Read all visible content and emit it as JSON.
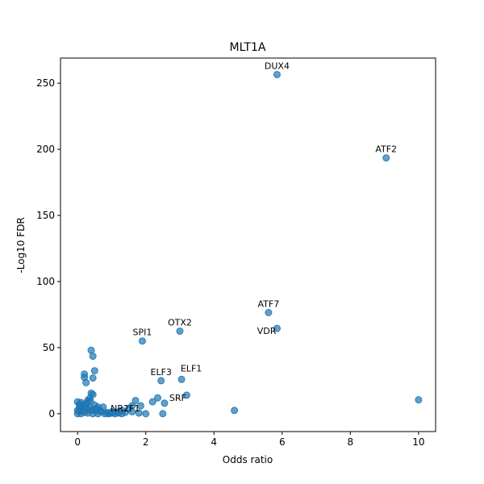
{
  "chart_data": {
    "type": "scatter",
    "title": "MLT1A",
    "xlabel": "Odds ratio",
    "ylabel": "-Log10 FDR",
    "xlim": [
      -0.5,
      10.5
    ],
    "ylim": [
      -13.5,
      269
    ],
    "xticks": [
      "0",
      "2",
      "4",
      "6",
      "8",
      "10"
    ],
    "yticks": [
      "0",
      "50",
      "100",
      "150",
      "200",
      "250"
    ],
    "grid": false,
    "point_color": "#1f77b4",
    "points": [
      {
        "x": 5.85,
        "y": 256.5
      },
      {
        "x": 9.05,
        "y": 193.5
      },
      {
        "x": 5.6,
        "y": 76.5
      },
      {
        "x": 5.85,
        "y": 64.5
      },
      {
        "x": 3.0,
        "y": 62.5
      },
      {
        "x": 1.9,
        "y": 55.0
      },
      {
        "x": 2.45,
        "y": 25.0
      },
      {
        "x": 3.05,
        "y": 26.0
      },
      {
        "x": 3.2,
        "y": 14.0
      },
      {
        "x": 2.55,
        "y": 8.0
      },
      {
        "x": 2.5,
        "y": 0.0
      },
      {
        "x": 1.85,
        "y": 6.0
      },
      {
        "x": 2.0,
        "y": 0.0
      },
      {
        "x": 4.6,
        "y": 2.5
      },
      {
        "x": 10.0,
        "y": 10.5
      },
      {
        "x": 2.35,
        "y": 12.0
      },
      {
        "x": 2.2,
        "y": 9.0
      },
      {
        "x": 1.7,
        "y": 10.0
      },
      {
        "x": 1.6,
        "y": 6.0
      },
      {
        "x": 1.5,
        "y": 4.0
      },
      {
        "x": 1.8,
        "y": 0.5
      },
      {
        "x": 1.4,
        "y": 1.0
      },
      {
        "x": 1.3,
        "y": 2.5
      },
      {
        "x": 0.4,
        "y": 48.0
      },
      {
        "x": 0.45,
        "y": 43.5
      },
      {
        "x": 0.5,
        "y": 32.5
      },
      {
        "x": 0.2,
        "y": 30.0
      },
      {
        "x": 0.2,
        "y": 27.5
      },
      {
        "x": 0.45,
        "y": 27.0
      },
      {
        "x": 0.25,
        "y": 23.5
      },
      {
        "x": 0.4,
        "y": 15.5
      },
      {
        "x": 0.45,
        "y": 14.5
      },
      {
        "x": 0.35,
        "y": 11.5
      },
      {
        "x": 0.3,
        "y": 10.0
      },
      {
        "x": 0.0,
        "y": 9.0
      },
      {
        "x": 0.1,
        "y": 8.5
      },
      {
        "x": 0.2,
        "y": 7.0
      },
      {
        "x": 0.5,
        "y": 6.5
      },
      {
        "x": 0.6,
        "y": 5.0
      },
      {
        "x": 0.75,
        "y": 5.0
      },
      {
        "x": 0.05,
        "y": 4.0
      },
      {
        "x": 0.15,
        "y": 3.5
      },
      {
        "x": 0.3,
        "y": 3.0
      },
      {
        "x": 0.4,
        "y": 2.5
      },
      {
        "x": 0.55,
        "y": 2.0
      },
      {
        "x": 0.7,
        "y": 1.5
      },
      {
        "x": 0.85,
        "y": 1.0
      },
      {
        "x": 1.0,
        "y": 0.5
      },
      {
        "x": 1.1,
        "y": 0.0
      },
      {
        "x": 1.2,
        "y": 0.5
      },
      {
        "x": 0.0,
        "y": 0.0
      },
      {
        "x": 0.05,
        "y": 1.5
      },
      {
        "x": 0.1,
        "y": 0.0
      },
      {
        "x": 0.2,
        "y": 1.0
      },
      {
        "x": 0.3,
        "y": 0.5
      },
      {
        "x": 0.35,
        "y": 5.0
      },
      {
        "x": 0.45,
        "y": 0.0
      },
      {
        "x": 0.6,
        "y": 0.0
      },
      {
        "x": 0.8,
        "y": 0.0
      },
      {
        "x": 0.9,
        "y": 0.0
      },
      {
        "x": 1.3,
        "y": 0.0
      },
      {
        "x": 0.5,
        "y": 3.5
      },
      {
        "x": 0.65,
        "y": 2.5
      },
      {
        "x": 0.15,
        "y": 6.0
      },
      {
        "x": 0.25,
        "y": 4.5
      },
      {
        "x": 1.6,
        "y": 1.5
      },
      {
        "x": 1.0,
        "y": 1.5
      },
      {
        "x": 0.0,
        "y": 2.5
      },
      {
        "x": 0.08,
        "y": 5.5
      },
      {
        "x": 0.28,
        "y": 8.0
      },
      {
        "x": 0.55,
        "y": 4.0
      },
      {
        "x": 0.95,
        "y": 0.3
      },
      {
        "x": 1.15,
        "y": 1.2
      },
      {
        "x": 0.05,
        "y": 7.0
      },
      {
        "x": 0.38,
        "y": 9.5
      }
    ],
    "annotations": [
      {
        "text": "DUX4",
        "x": 5.85,
        "y": 256.5,
        "anchor": "above"
      },
      {
        "text": "ATF2",
        "x": 9.05,
        "y": 193.5,
        "anchor": "above"
      },
      {
        "text": "ATF7",
        "x": 5.6,
        "y": 76.5,
        "anchor": "above"
      },
      {
        "text": "VDR",
        "x": 5.85,
        "y": 64.5,
        "anchor": "left"
      },
      {
        "text": "OTX2",
        "x": 3.0,
        "y": 62.5,
        "anchor": "above"
      },
      {
        "text": "SPI1",
        "x": 1.9,
        "y": 55.0,
        "anchor": "above"
      },
      {
        "text": "ELF3",
        "x": 2.45,
        "y": 25.0,
        "anchor": "above"
      },
      {
        "text": "ELF1",
        "x": 3.05,
        "y": 26.0,
        "anchor": "above-right"
      },
      {
        "text": "SRF",
        "x": 2.55,
        "y": 8.0,
        "anchor": "right"
      },
      {
        "text": "NR2F1",
        "x": 1.85,
        "y": 6.0,
        "anchor": "left"
      }
    ]
  }
}
